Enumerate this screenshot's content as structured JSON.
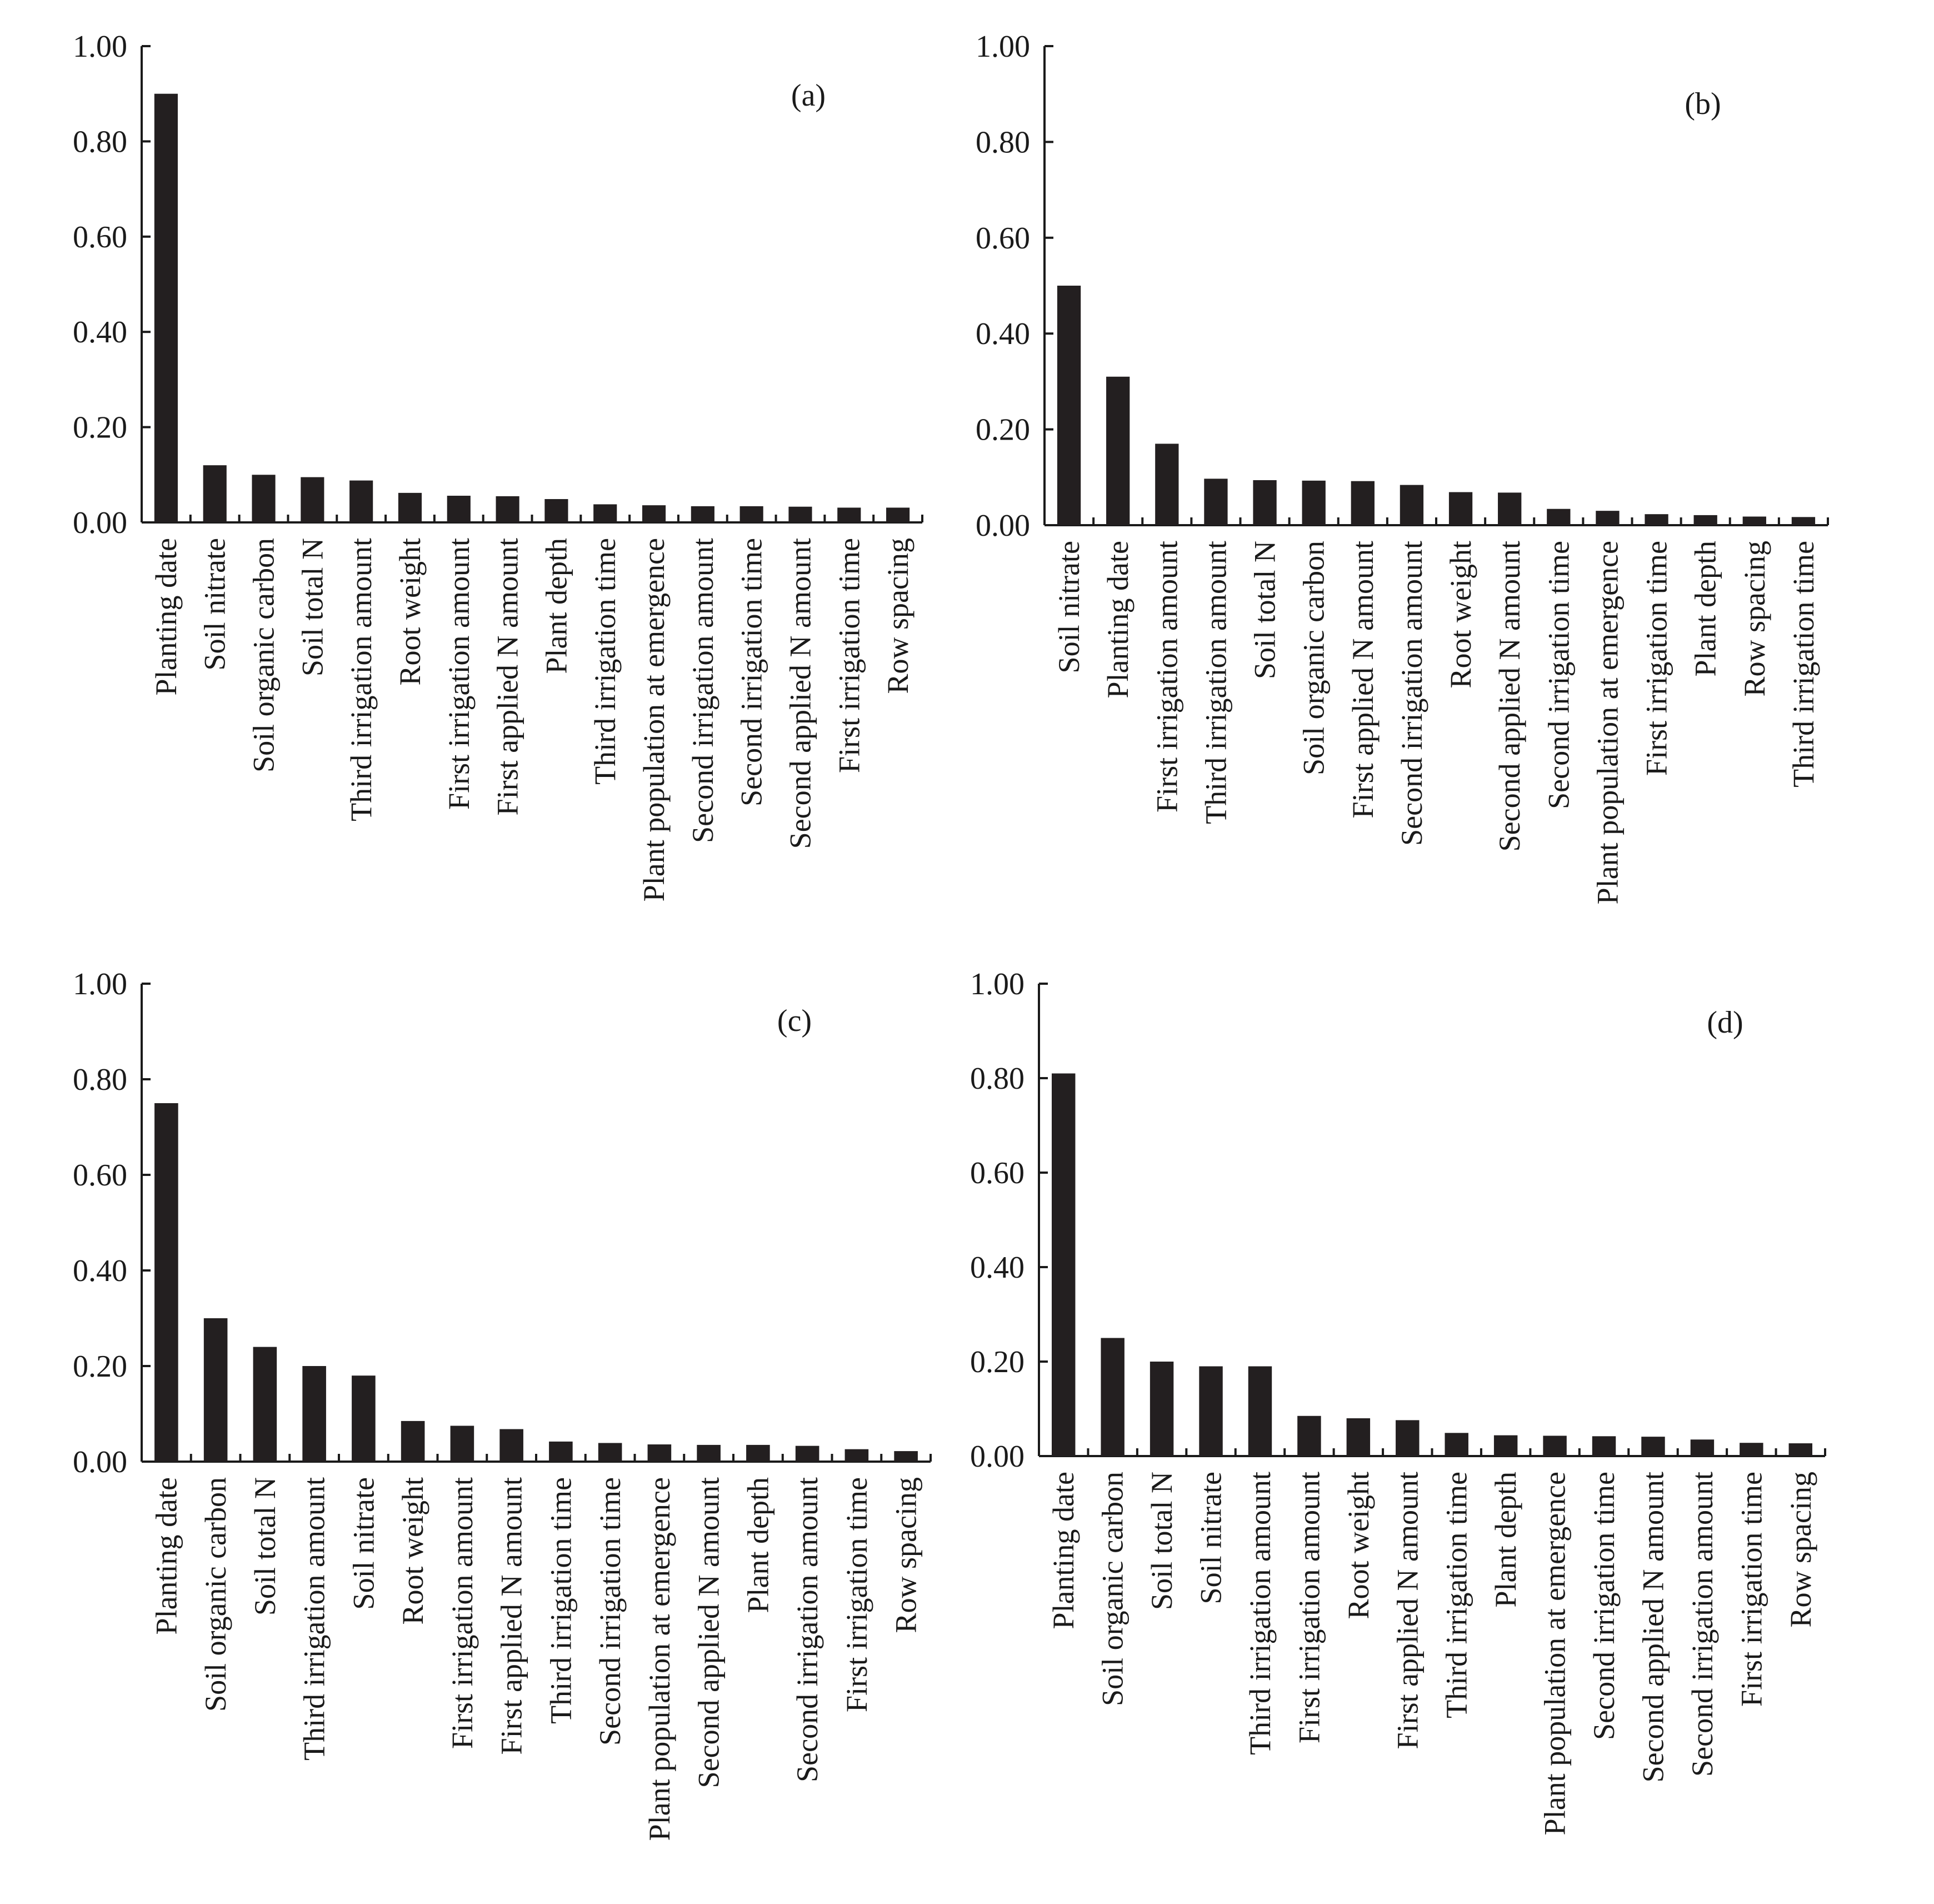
{
  "chart_data": [
    {
      "type": "bar",
      "panel": "(a)",
      "ylim": [
        0,
        1
      ],
      "yticks": [
        "0.00",
        "0.20",
        "0.40",
        "0.60",
        "0.80",
        "1.00"
      ],
      "categories": [
        "Planting date",
        "Soil nitrate",
        "Soil organic carbon",
        "Soil total N",
        "Third irrigation amount",
        "Root weight",
        "First irrigation amount",
        "First applied N amount",
        "Plant depth",
        "Third irrigation time",
        "Plant population at emergence",
        "Second irrigation amount",
        "Second irrigation time",
        "Second applied N amount",
        "First irrigation time",
        "Row spacing"
      ],
      "values": [
        0.9,
        0.12,
        0.1,
        0.095,
        0.088,
        0.062,
        0.056,
        0.055,
        0.049,
        0.038,
        0.036,
        0.034,
        0.034,
        0.033,
        0.031,
        0.031
      ]
    },
    {
      "type": "bar",
      "panel": "(b)",
      "ylim": [
        0,
        1
      ],
      "yticks": [
        "0.00",
        "0.20",
        "0.40",
        "0.60",
        "0.80",
        "1.00"
      ],
      "categories": [
        "Soil nitrate",
        "Planting date",
        "First irrigation amount",
        "Third irrigation amount",
        "Soil total N",
        "Soil organic carbon",
        "First applied N amount",
        "Second irrigation amount",
        "Root weight",
        "Second applied N amount",
        "Second irrigation time",
        "Plant population at emergence",
        "First irrigation time",
        "Plant depth",
        "Row spacing",
        "Third irrigation time"
      ],
      "values": [
        0.5,
        0.31,
        0.17,
        0.097,
        0.094,
        0.093,
        0.092,
        0.084,
        0.069,
        0.068,
        0.034,
        0.03,
        0.023,
        0.021,
        0.018,
        0.017
      ]
    },
    {
      "type": "bar",
      "panel": "(c)",
      "ylim": [
        0,
        1
      ],
      "yticks": [
        "0.00",
        "0.20",
        "0.40",
        "0.60",
        "0.80",
        "1.00"
      ],
      "categories": [
        "Planting date",
        "Soil organic carbon",
        "Soil total N",
        "Third irrigation amount",
        "Soil nitrate",
        "Root weight",
        "First irrigation amount",
        "First applied N amount",
        "Third irrigation time",
        "Second irrigation time",
        "Plant population at emergence",
        "Second applied N amount",
        "Plant depth",
        "Second irrigation amount",
        "First irrigation time",
        "Row spacing"
      ],
      "values": [
        0.75,
        0.3,
        0.24,
        0.2,
        0.18,
        0.085,
        0.075,
        0.068,
        0.042,
        0.039,
        0.036,
        0.035,
        0.035,
        0.033,
        0.026,
        0.022
      ]
    },
    {
      "type": "bar",
      "panel": "(d)",
      "ylim": [
        0,
        1
      ],
      "yticks": [
        "0.00",
        "0.20",
        "0.40",
        "0.60",
        "0.80",
        "1.00"
      ],
      "categories": [
        "Planting date",
        "Soil organic carbon",
        "Soil total N",
        "Soil nitrate",
        "Third irrigation amount",
        "First irrigation amount",
        "Root weight",
        "First applied N amount",
        "Third irrigation time",
        "Plant depth",
        "Plant population at emergence",
        "Second irrigation time",
        "Second applied N amount",
        "Second irrigation amount",
        "First irrigation time",
        "Row spacing"
      ],
      "values": [
        0.81,
        0.25,
        0.2,
        0.19,
        0.19,
        0.085,
        0.08,
        0.076,
        0.049,
        0.044,
        0.043,
        0.042,
        0.041,
        0.035,
        0.028,
        0.027
      ]
    }
  ]
}
